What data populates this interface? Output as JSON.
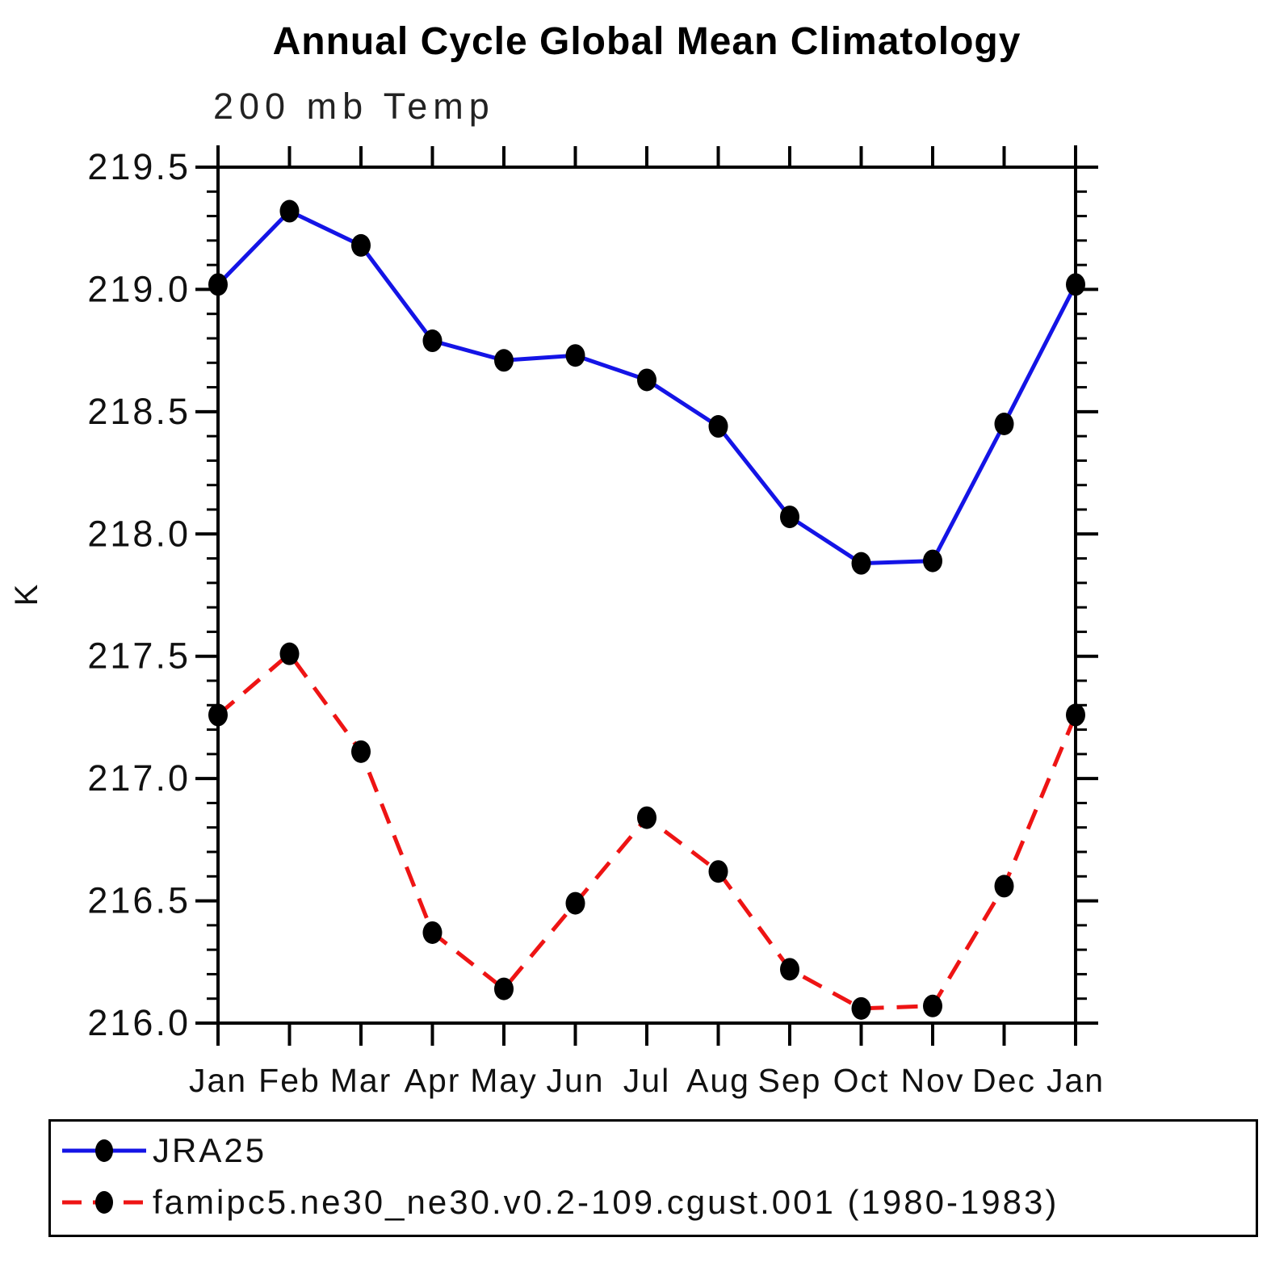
{
  "title": "Annual Cycle Global Mean Climatology",
  "subtitle": "200 mb Temp",
  "y_axis_label": "K",
  "legend": {
    "items": [
      {
        "label": "JRA25",
        "color": "#1414e6",
        "style": "solid"
      },
      {
        "label": "famipc5.ne30_ne30.v0.2-109.cgust.001 (1980-1983)",
        "color": "#ee1414",
        "style": "dashed"
      }
    ]
  },
  "colors": {
    "jra25_line": "#1414e6",
    "model_line": "#ee1414",
    "marker": "#000000",
    "axis": "#000000"
  },
  "chart_data": {
    "type": "line",
    "categories": [
      "Jan",
      "Feb",
      "Mar",
      "Apr",
      "May",
      "Jun",
      "Jul",
      "Aug",
      "Sep",
      "Oct",
      "Nov",
      "Dec",
      "Jan"
    ],
    "title": "Annual Cycle Global Mean Climatology",
    "subtitle": "200 mb Temp",
    "xlabel": "",
    "ylabel": "K",
    "ylim": [
      216.0,
      219.5
    ],
    "y_major_step": 0.5,
    "y_minor_step": 0.1,
    "y_tick_labels": [
      "216.0",
      "216.5",
      "217.0",
      "217.5",
      "218.0",
      "218.5",
      "219.0",
      "219.5"
    ],
    "grid": false,
    "legend_position": "bottom",
    "series": [
      {
        "name": "JRA25",
        "color": "#1414e6",
        "dash": false,
        "marker": "filled-circle",
        "values": [
          219.02,
          219.32,
          219.18,
          218.79,
          218.71,
          218.73,
          218.63,
          218.44,
          218.07,
          217.88,
          217.89,
          218.45,
          219.02
        ]
      },
      {
        "name": "famipc5.ne30_ne30.v0.2-109.cgust.001 (1980-1983)",
        "color": "#ee1414",
        "dash": true,
        "marker": "filled-circle",
        "values": [
          217.26,
          217.51,
          217.11,
          216.37,
          216.14,
          216.49,
          216.84,
          216.62,
          216.22,
          216.06,
          216.07,
          216.56,
          217.26
        ]
      }
    ]
  }
}
